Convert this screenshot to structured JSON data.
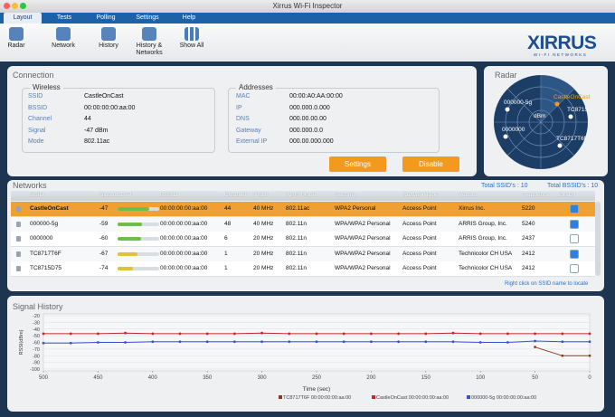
{
  "window": {
    "title": "Xirrus Wi-Fi Inspector"
  },
  "menu_tabs": [
    "Layout",
    "Tests",
    "Polling",
    "Settings",
    "Help"
  ],
  "toolbar": [
    "Radar",
    "Network",
    "History",
    "History & Networks",
    "Show All"
  ],
  "logo": {
    "name": "XIRRUS",
    "tagline": "WI-FI NETWORKS"
  },
  "connection": {
    "title": "Connection",
    "wireless": {
      "title": "Wireless",
      "fields": [
        {
          "label": "SSID",
          "value": "CastleOnCast"
        },
        {
          "label": "BSSID",
          "value": "00:00:00:00:aa:00"
        },
        {
          "label": "Channel",
          "value": "44"
        },
        {
          "label": "Signal",
          "value": "-47 dBm"
        },
        {
          "label": "Mode",
          "value": "802.11ac"
        }
      ]
    },
    "addresses": {
      "title": "Addresses",
      "fields": [
        {
          "label": "MAC",
          "value": "00:00:A0:AA:00:00"
        },
        {
          "label": "IP",
          "value": "000.000.0.000"
        },
        {
          "label": "DNS",
          "value": "000.00.00.00"
        },
        {
          "label": "Gateway",
          "value": "000.000.0.0"
        },
        {
          "label": "External IP",
          "value": "000.00.000.000"
        }
      ]
    },
    "buttons": [
      "Settings",
      "Disable"
    ]
  },
  "radar": {
    "title": "Radar",
    "labels": [
      "CastleOnCast",
      "000000-5g",
      "TC8715",
      "dBm",
      "0000000",
      "TC8717T6F"
    ]
  },
  "networks": {
    "title": "Networks",
    "total_ssids": "Total SSID's : 10",
    "total_bssids": "Total BSSID's : 10",
    "columns": [
      "SSID",
      "Signal Level",
      "BSSID",
      "Channel",
      "Width",
      "Wi-Fi Mode",
      "Security",
      "Network Type",
      "Vendor",
      "Frequency",
      "Graph"
    ],
    "rows": [
      [
        "CastleOnCast",
        -47,
        "00:00:00:00:aa:00",
        44,
        "40 MHz",
        "802.11ac",
        "WPA2 Personal",
        "Access Point",
        "Xirrus Inc.",
        5220
      ],
      [
        "000000-5g",
        -59,
        "00:00:00:00:aa:00",
        48,
        "40 MHz",
        "802.11n",
        "WPA/WPA2 Personal",
        "Access Point",
        "ARRIS Group, Inc.",
        5240
      ],
      [
        "0000000",
        -60,
        "00:00:00:00:aa:00",
        6,
        "20 MHz",
        "802.11n",
        "WPA/WPA2 Personal",
        "Access Point",
        "ARRIS Group, Inc.",
        2437
      ],
      [
        "TC8717T6F",
        -67,
        "00:00:00:00:aa:00",
        1,
        "20 MHz",
        "802.11n",
        "WPA/WPA2 Personal",
        "Access Point",
        "Technicolor CH USA",
        2412
      ],
      [
        "TC8715D75",
        -74,
        "00:00:00:00:aa:00",
        1,
        "20 MHz",
        "802.11n",
        "WPA/WPA2 Personal",
        "Access Point",
        "Technicolor CH USA",
        2412
      ]
    ],
    "graph": [
      true,
      true,
      false,
      true,
      false
    ],
    "selected_row": 0,
    "hint": "Right click on SSID name to locate"
  },
  "chart_data": {
    "type": "line",
    "title": "Signal History",
    "x_label": "Time (sec)",
    "y_label": "RSSI(dBm)",
    "x": [
      500,
      475,
      450,
      425,
      400,
      375,
      350,
      325,
      300,
      275,
      250,
      225,
      200,
      175,
      150,
      125,
      100,
      75,
      50,
      25,
      0
    ],
    "xlim": [
      500,
      0
    ],
    "xticks": [
      500,
      450,
      400,
      350,
      300,
      250,
      200,
      150,
      100,
      50,
      0
    ],
    "ylim": [
      -100,
      -20
    ],
    "yticks": [
      -20,
      -30,
      -40,
      -50,
      -60,
      -70,
      -80,
      -90,
      -100
    ],
    "grid": true,
    "legend": "bottom",
    "series": [
      {
        "name": "TC8717T6F 00:00:00:00:aa:00",
        "color": "#8b3a1a",
        "values": [
          null,
          null,
          null,
          null,
          null,
          null,
          null,
          null,
          null,
          null,
          null,
          null,
          null,
          null,
          null,
          null,
          null,
          null,
          -67,
          -80,
          -80
        ]
      },
      {
        "name": "CastleOnCast 00:00:00:00:aa:00",
        "color": "#c0282c",
        "values": [
          -47,
          -47,
          -47,
          -46,
          -47,
          -47,
          -47,
          -47,
          -46,
          -47,
          -47,
          -47,
          -47,
          -47,
          -47,
          -46,
          -47,
          -47,
          -47,
          -47,
          -47
        ]
      },
      {
        "name": "000000-5g 00:00:00:00:aa:00",
        "color": "#3a4fd6",
        "values": [
          -61,
          -61,
          -60,
          -60,
          -59,
          -59,
          -59,
          -59,
          -59,
          -59,
          -59,
          -59,
          -59,
          -59,
          -59,
          -59,
          -60,
          -60,
          -58,
          -59,
          -59
        ]
      }
    ]
  }
}
